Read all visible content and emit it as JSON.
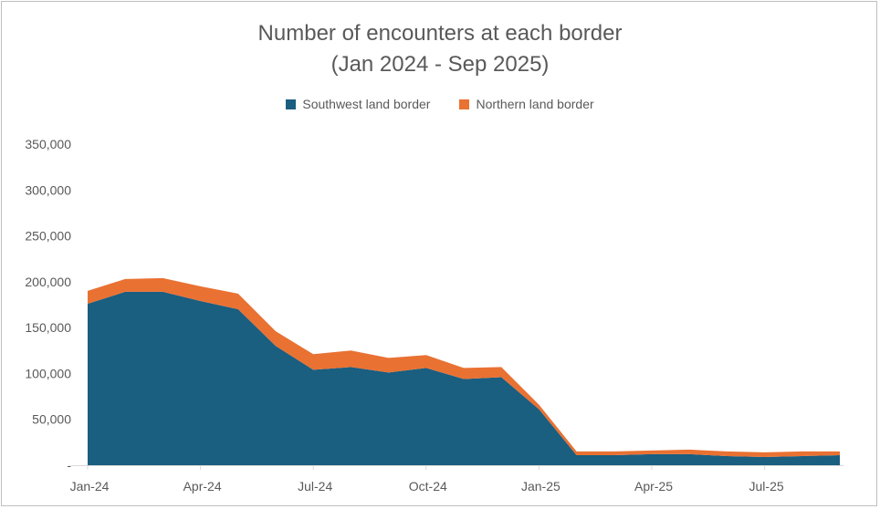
{
  "chart_data": {
    "type": "area",
    "stacked": true,
    "title": "Number of encounters at each border",
    "subtitle": "(Jan 2024 - Sep 2025)",
    "x": [
      "Jan-24",
      "Feb-24",
      "Mar-24",
      "Apr-24",
      "May-24",
      "Jun-24",
      "Jul-24",
      "Aug-24",
      "Sep-24",
      "Oct-24",
      "Nov-24",
      "Dec-24",
      "Jan-25",
      "Feb-25",
      "Mar-25",
      "Apr-25",
      "May-25",
      "Jun-25",
      "Jul-25",
      "Aug-25",
      "Sep-25"
    ],
    "x_tick_labels": [
      "Jan-24",
      "Apr-24",
      "Jul-24",
      "Oct-24",
      "Jan-25",
      "Apr-25",
      "Jul-25"
    ],
    "x_tick_indices": [
      0,
      3,
      6,
      9,
      12,
      15,
      18
    ],
    "series": [
      {
        "name": "Southwest land border",
        "color": "#1a5e80",
        "values": [
          176000,
          189000,
          189000,
          179000,
          170000,
          130000,
          104000,
          107000,
          101000,
          106000,
          94000,
          96000,
          61000,
          11000,
          11000,
          12000,
          12000,
          10000,
          9000,
          10000,
          11000
        ]
      },
      {
        "name": "Northern land border",
        "color": "#e97132",
        "values": [
          14000,
          14000,
          15000,
          16000,
          17000,
          16000,
          17000,
          18000,
          16000,
          14000,
          12000,
          11000,
          5000,
          4000,
          4000,
          4000,
          5000,
          5000,
          5000,
          5000,
          4000
        ]
      }
    ],
    "y_ticks": [
      0,
      50000,
      100000,
      150000,
      200000,
      250000,
      300000,
      350000
    ],
    "y_tick_labels": [
      "-",
      "50,000",
      "100,000",
      "150,000",
      "200,000",
      "250,000",
      "300,000",
      "350,000"
    ],
    "ylim": [
      0,
      350000
    ],
    "grid": false,
    "legend_position": "top"
  }
}
